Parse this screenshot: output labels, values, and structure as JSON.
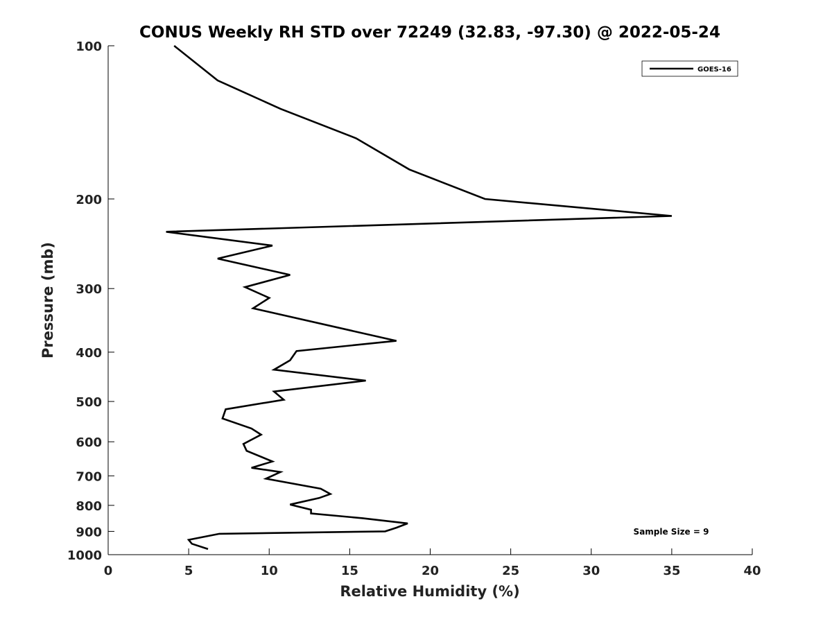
{
  "chart_data": {
    "type": "line",
    "title": "CONUS Weekly RH STD over 72249 (32.83, -97.30) @ 2022-05-24",
    "xlabel": "Relative Humidity (%)",
    "ylabel": "Pressure (mb)",
    "xlim": [
      0,
      40
    ],
    "ylim": [
      100,
      1000
    ],
    "yscale": "log",
    "y_reversed": true,
    "grid": false,
    "legend_placement": "top-right",
    "x_ticks": [
      "0",
      "5",
      "10",
      "15",
      "20",
      "25",
      "30",
      "35",
      "40"
    ],
    "y_ticks": [
      "100",
      "200",
      "300",
      "400",
      "500",
      "600",
      "700",
      "800",
      "900",
      "1000"
    ],
    "series": [
      {
        "name": "GOES-16",
        "color": "#000000",
        "points": [
          [
            4.1,
            100
          ],
          [
            6.8,
            117
          ],
          [
            10.7,
            133
          ],
          [
            15.4,
            152
          ],
          [
            18.7,
            175
          ],
          [
            23.4,
            200
          ],
          [
            35.0,
            216
          ],
          [
            3.6,
            232
          ],
          [
            10.2,
            247
          ],
          [
            6.8,
            262
          ],
          [
            11.3,
            282
          ],
          [
            8.5,
            298
          ],
          [
            10.0,
            313
          ],
          [
            9.0,
            328
          ],
          [
            17.9,
            380
          ],
          [
            11.7,
            398
          ],
          [
            11.3,
            415
          ],
          [
            10.3,
            433
          ],
          [
            16.0,
            455
          ],
          [
            10.3,
            478
          ],
          [
            10.9,
            496
          ],
          [
            7.3,
            518
          ],
          [
            7.1,
            540
          ],
          [
            8.9,
            565
          ],
          [
            9.5,
            581
          ],
          [
            8.4,
            606
          ],
          [
            8.6,
            625
          ],
          [
            10.2,
            656
          ],
          [
            8.9,
            675
          ],
          [
            10.7,
            688
          ],
          [
            9.8,
            709
          ],
          [
            13.2,
            742
          ],
          [
            13.8,
            760
          ],
          [
            13.1,
            774
          ],
          [
            11.3,
            797
          ],
          [
            12.6,
            816
          ],
          [
            12.6,
            830
          ],
          [
            15.8,
            848
          ],
          [
            18.6,
            868
          ],
          [
            17.9,
            885
          ],
          [
            17.2,
            900
          ],
          [
            6.9,
            910
          ],
          [
            5.0,
            935
          ],
          [
            5.2,
            952
          ],
          [
            6.2,
            975
          ]
        ]
      }
    ],
    "annotations": [
      "Sample Size = 9"
    ]
  }
}
